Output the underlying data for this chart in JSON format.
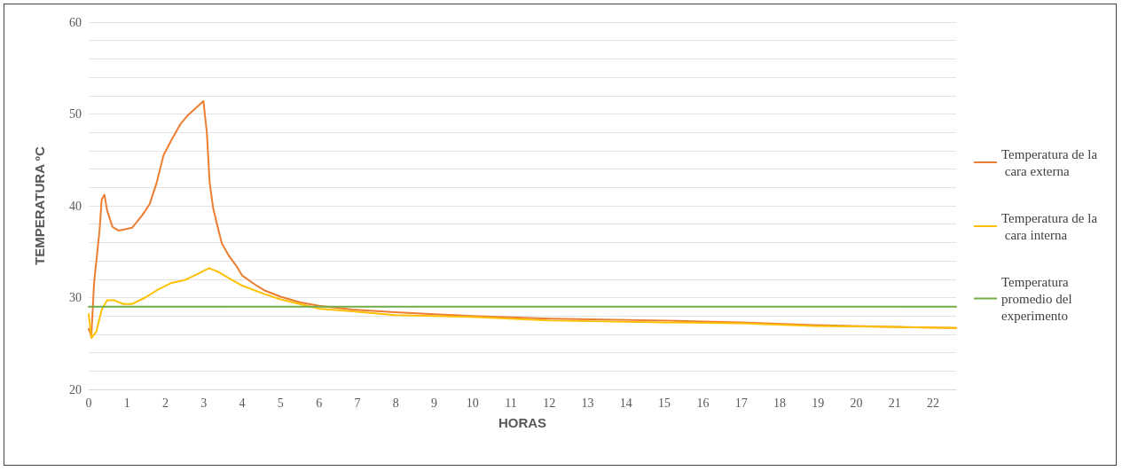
{
  "chart_data": {
    "type": "line",
    "xlabel": "HORAS",
    "ylabel": "TEMPERATURA ºC",
    "xlim": [
      0,
      22.6
    ],
    "xticks": [
      0,
      1,
      2,
      3,
      4,
      5,
      6,
      7,
      8,
      9,
      10,
      11,
      12,
      13,
      14,
      15,
      16,
      17,
      18,
      19,
      20,
      21,
      22
    ],
    "ylim": [
      20,
      60
    ],
    "yticks": [
      20,
      {
        "value": 22,
        "label": null
      },
      {
        "value": 24,
        "label": null
      },
      {
        "value": 26,
        "label": null
      },
      {
        "value": 28,
        "label": null
      },
      30,
      {
        "value": 32,
        "label": null
      },
      {
        "value": 34,
        "label": null
      },
      {
        "value": 36,
        "label": null
      },
      {
        "value": 38,
        "label": null
      },
      40,
      {
        "value": 42,
        "label": null
      },
      {
        "value": 44,
        "label": null
      },
      {
        "value": 46,
        "label": null
      },
      {
        "value": 48,
        "label": null
      },
      50,
      {
        "value": 52,
        "label": null
      },
      {
        "value": 54,
        "label": null
      },
      {
        "value": 56,
        "label": null
      },
      {
        "value": 58,
        "label": null
      },
      60
    ],
    "grid": "y",
    "legend": "right",
    "marker": "none",
    "line_style": "solid",
    "series": [
      {
        "name": "Temperatura de la cara externa",
        "color": "#ed7d31",
        "x": [
          0,
          0.07,
          0.14,
          0.28,
          0.34,
          0.41,
          0.48,
          0.62,
          0.78,
          1.13,
          1.4,
          1.59,
          1.77,
          1.95,
          2.16,
          2.39,
          2.57,
          2.99,
          3.08,
          3.15,
          3.24,
          3.36,
          3.47,
          3.66,
          3.84,
          4.0,
          4.34,
          4.57,
          5.0,
          5.5,
          6.0,
          6.87,
          7.98,
          9.98,
          12.0,
          15.0,
          17.0,
          18.9,
          20.9,
          22.6
        ],
        "values": [
          26.6,
          25.8,
          31.6,
          37.2,
          40.7,
          41.2,
          39.5,
          37.7,
          37.3,
          37.6,
          39.0,
          40.2,
          42.5,
          45.5,
          47.2,
          48.9,
          49.8,
          51.4,
          47.9,
          42.6,
          39.8,
          37.7,
          35.9,
          34.5,
          33.5,
          32.4,
          31.4,
          30.8,
          30.1,
          29.5,
          29.1,
          28.7,
          28.4,
          28.0,
          27.7,
          27.5,
          27.3,
          27.0,
          26.8,
          26.7
        ]
      },
      {
        "name": "Temperatura de la cara interna",
        "color": "#ffc000",
        "x": [
          0,
          0.07,
          0.2,
          0.34,
          0.48,
          0.67,
          0.9,
          1.13,
          1.47,
          1.82,
          2.16,
          2.5,
          2.85,
          3.13,
          3.38,
          3.66,
          4.0,
          4.57,
          5.0,
          5.5,
          6.0,
          6.87,
          7.98,
          9.98,
          12.0,
          15.0,
          17.0,
          18.9,
          20.9,
          22.6
        ],
        "values": [
          28.2,
          25.6,
          26.3,
          28.7,
          29.7,
          29.7,
          29.3,
          29.3,
          30.0,
          30.9,
          31.6,
          31.9,
          32.6,
          33.2,
          32.8,
          32.1,
          31.3,
          30.4,
          29.8,
          29.3,
          28.8,
          28.5,
          28.1,
          27.9,
          27.5,
          27.3,
          27.2,
          26.9,
          26.8,
          26.7
        ]
      },
      {
        "name": "Temperatura promedio del experimento",
        "color": "#70ad47",
        "x": [
          0,
          22.6
        ],
        "values": [
          29.0,
          29.0
        ]
      }
    ]
  }
}
